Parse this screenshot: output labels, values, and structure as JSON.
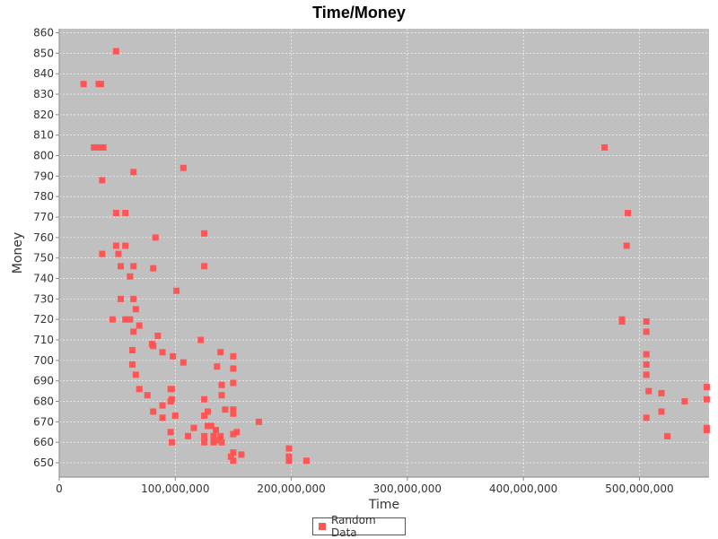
{
  "colors": {
    "plot_background": "#c0c0c0",
    "gridline": "#ffffff",
    "series": "#ff5555",
    "axis": "#888888",
    "text": "#333333"
  },
  "chart_data": {
    "type": "scatter",
    "title": "Time/Money",
    "xlabel": "Time",
    "ylabel": "Money",
    "xlim": [
      0,
      560000000
    ],
    "ylim": [
      643,
      862
    ],
    "x_ticks": [
      0,
      100000000,
      200000000,
      300000000,
      400000000,
      500000000
    ],
    "x_tick_labels": [
      "0",
      "100,000,000",
      "200,000,000",
      "300,000,000",
      "400,000,000",
      "500,000,000"
    ],
    "y_ticks": [
      650,
      660,
      670,
      680,
      690,
      700,
      710,
      720,
      730,
      740,
      750,
      760,
      770,
      780,
      790,
      800,
      810,
      820,
      830,
      840,
      850,
      860
    ],
    "y_tick_labels": [
      "650",
      "660",
      "670",
      "680",
      "690",
      "700",
      "710",
      "720",
      "730",
      "740",
      "750",
      "760",
      "770",
      "780",
      "790",
      "800",
      "810",
      "820",
      "830",
      "840",
      "850",
      "860"
    ],
    "grid": true,
    "legend_position": "bottom-center",
    "series": [
      {
        "name": "Random Data",
        "points": [
          [
            49000000,
            851
          ],
          [
            21000000,
            835
          ],
          [
            34000000,
            835
          ],
          [
            36000000,
            835
          ],
          [
            30000000,
            804
          ],
          [
            34000000,
            804
          ],
          [
            38000000,
            804
          ],
          [
            37000000,
            788
          ],
          [
            64000000,
            792
          ],
          [
            49000000,
            772
          ],
          [
            57000000,
            772
          ],
          [
            49000000,
            756
          ],
          [
            57000000,
            756
          ],
          [
            51000000,
            752
          ],
          [
            37000000,
            752
          ],
          [
            53000000,
            746
          ],
          [
            64000000,
            746
          ],
          [
            61000000,
            741
          ],
          [
            53000000,
            730
          ],
          [
            64000000,
            730
          ],
          [
            66000000,
            725
          ],
          [
            46000000,
            720
          ],
          [
            57000000,
            720
          ],
          [
            61000000,
            720
          ],
          [
            69000000,
            717
          ],
          [
            64000000,
            714
          ],
          [
            83000000,
            760
          ],
          [
            81000000,
            745
          ],
          [
            85000000,
            712
          ],
          [
            80000000,
            708
          ],
          [
            81000000,
            707
          ],
          [
            89000000,
            704
          ],
          [
            63000000,
            705
          ],
          [
            63000000,
            698
          ],
          [
            66000000,
            693
          ],
          [
            69000000,
            686
          ],
          [
            76000000,
            683
          ],
          [
            81000000,
            675
          ],
          [
            89000000,
            672
          ],
          [
            89000000,
            678
          ],
          [
            96000000,
            680
          ],
          [
            96000000,
            686
          ],
          [
            97000000,
            686
          ],
          [
            97000000,
            681
          ],
          [
            98000000,
            702
          ],
          [
            101000000,
            734
          ],
          [
            107000000,
            794
          ],
          [
            107000000,
            699
          ],
          [
            100000000,
            673
          ],
          [
            96000000,
            665
          ],
          [
            97000000,
            660
          ],
          [
            111000000,
            663
          ],
          [
            116000000,
            667
          ],
          [
            122000000,
            710
          ],
          [
            125000000,
            762
          ],
          [
            125000000,
            746
          ],
          [
            125000000,
            681
          ],
          [
            125000000,
            673
          ],
          [
            128000000,
            675
          ],
          [
            128000000,
            668
          ],
          [
            125000000,
            663
          ],
          [
            125000000,
            660
          ],
          [
            131000000,
            668
          ],
          [
            133000000,
            663
          ],
          [
            133000000,
            660
          ],
          [
            135000000,
            666
          ],
          [
            136000000,
            697
          ],
          [
            139000000,
            704
          ],
          [
            140000000,
            688
          ],
          [
            140000000,
            683
          ],
          [
            137000000,
            661
          ],
          [
            140000000,
            660
          ],
          [
            143000000,
            676
          ],
          [
            139000000,
            663
          ],
          [
            150000000,
            702
          ],
          [
            150000000,
            696
          ],
          [
            150000000,
            689
          ],
          [
            150000000,
            676
          ],
          [
            150000000,
            674
          ],
          [
            150000000,
            664
          ],
          [
            153000000,
            665
          ],
          [
            148000000,
            653
          ],
          [
            150000000,
            655
          ],
          [
            150000000,
            651
          ],
          [
            157000000,
            654
          ],
          [
            172000000,
            670
          ],
          [
            198000000,
            657
          ],
          [
            198000000,
            653
          ],
          [
            198000000,
            651
          ],
          [
            213000000,
            651
          ],
          [
            470000000,
            804
          ],
          [
            490000000,
            772
          ],
          [
            489000000,
            756
          ],
          [
            485000000,
            720
          ],
          [
            485000000,
            719
          ],
          [
            506000000,
            719
          ],
          [
            506000000,
            714
          ],
          [
            506000000,
            703
          ],
          [
            506000000,
            698
          ],
          [
            506000000,
            693
          ],
          [
            506000000,
            672
          ],
          [
            508000000,
            685
          ],
          [
            519000000,
            684
          ],
          [
            519000000,
            675
          ],
          [
            524000000,
            663
          ],
          [
            539000000,
            680
          ],
          [
            558000000,
            687
          ],
          [
            558000000,
            681
          ],
          [
            558000000,
            667
          ],
          [
            558000000,
            666
          ]
        ]
      }
    ]
  }
}
